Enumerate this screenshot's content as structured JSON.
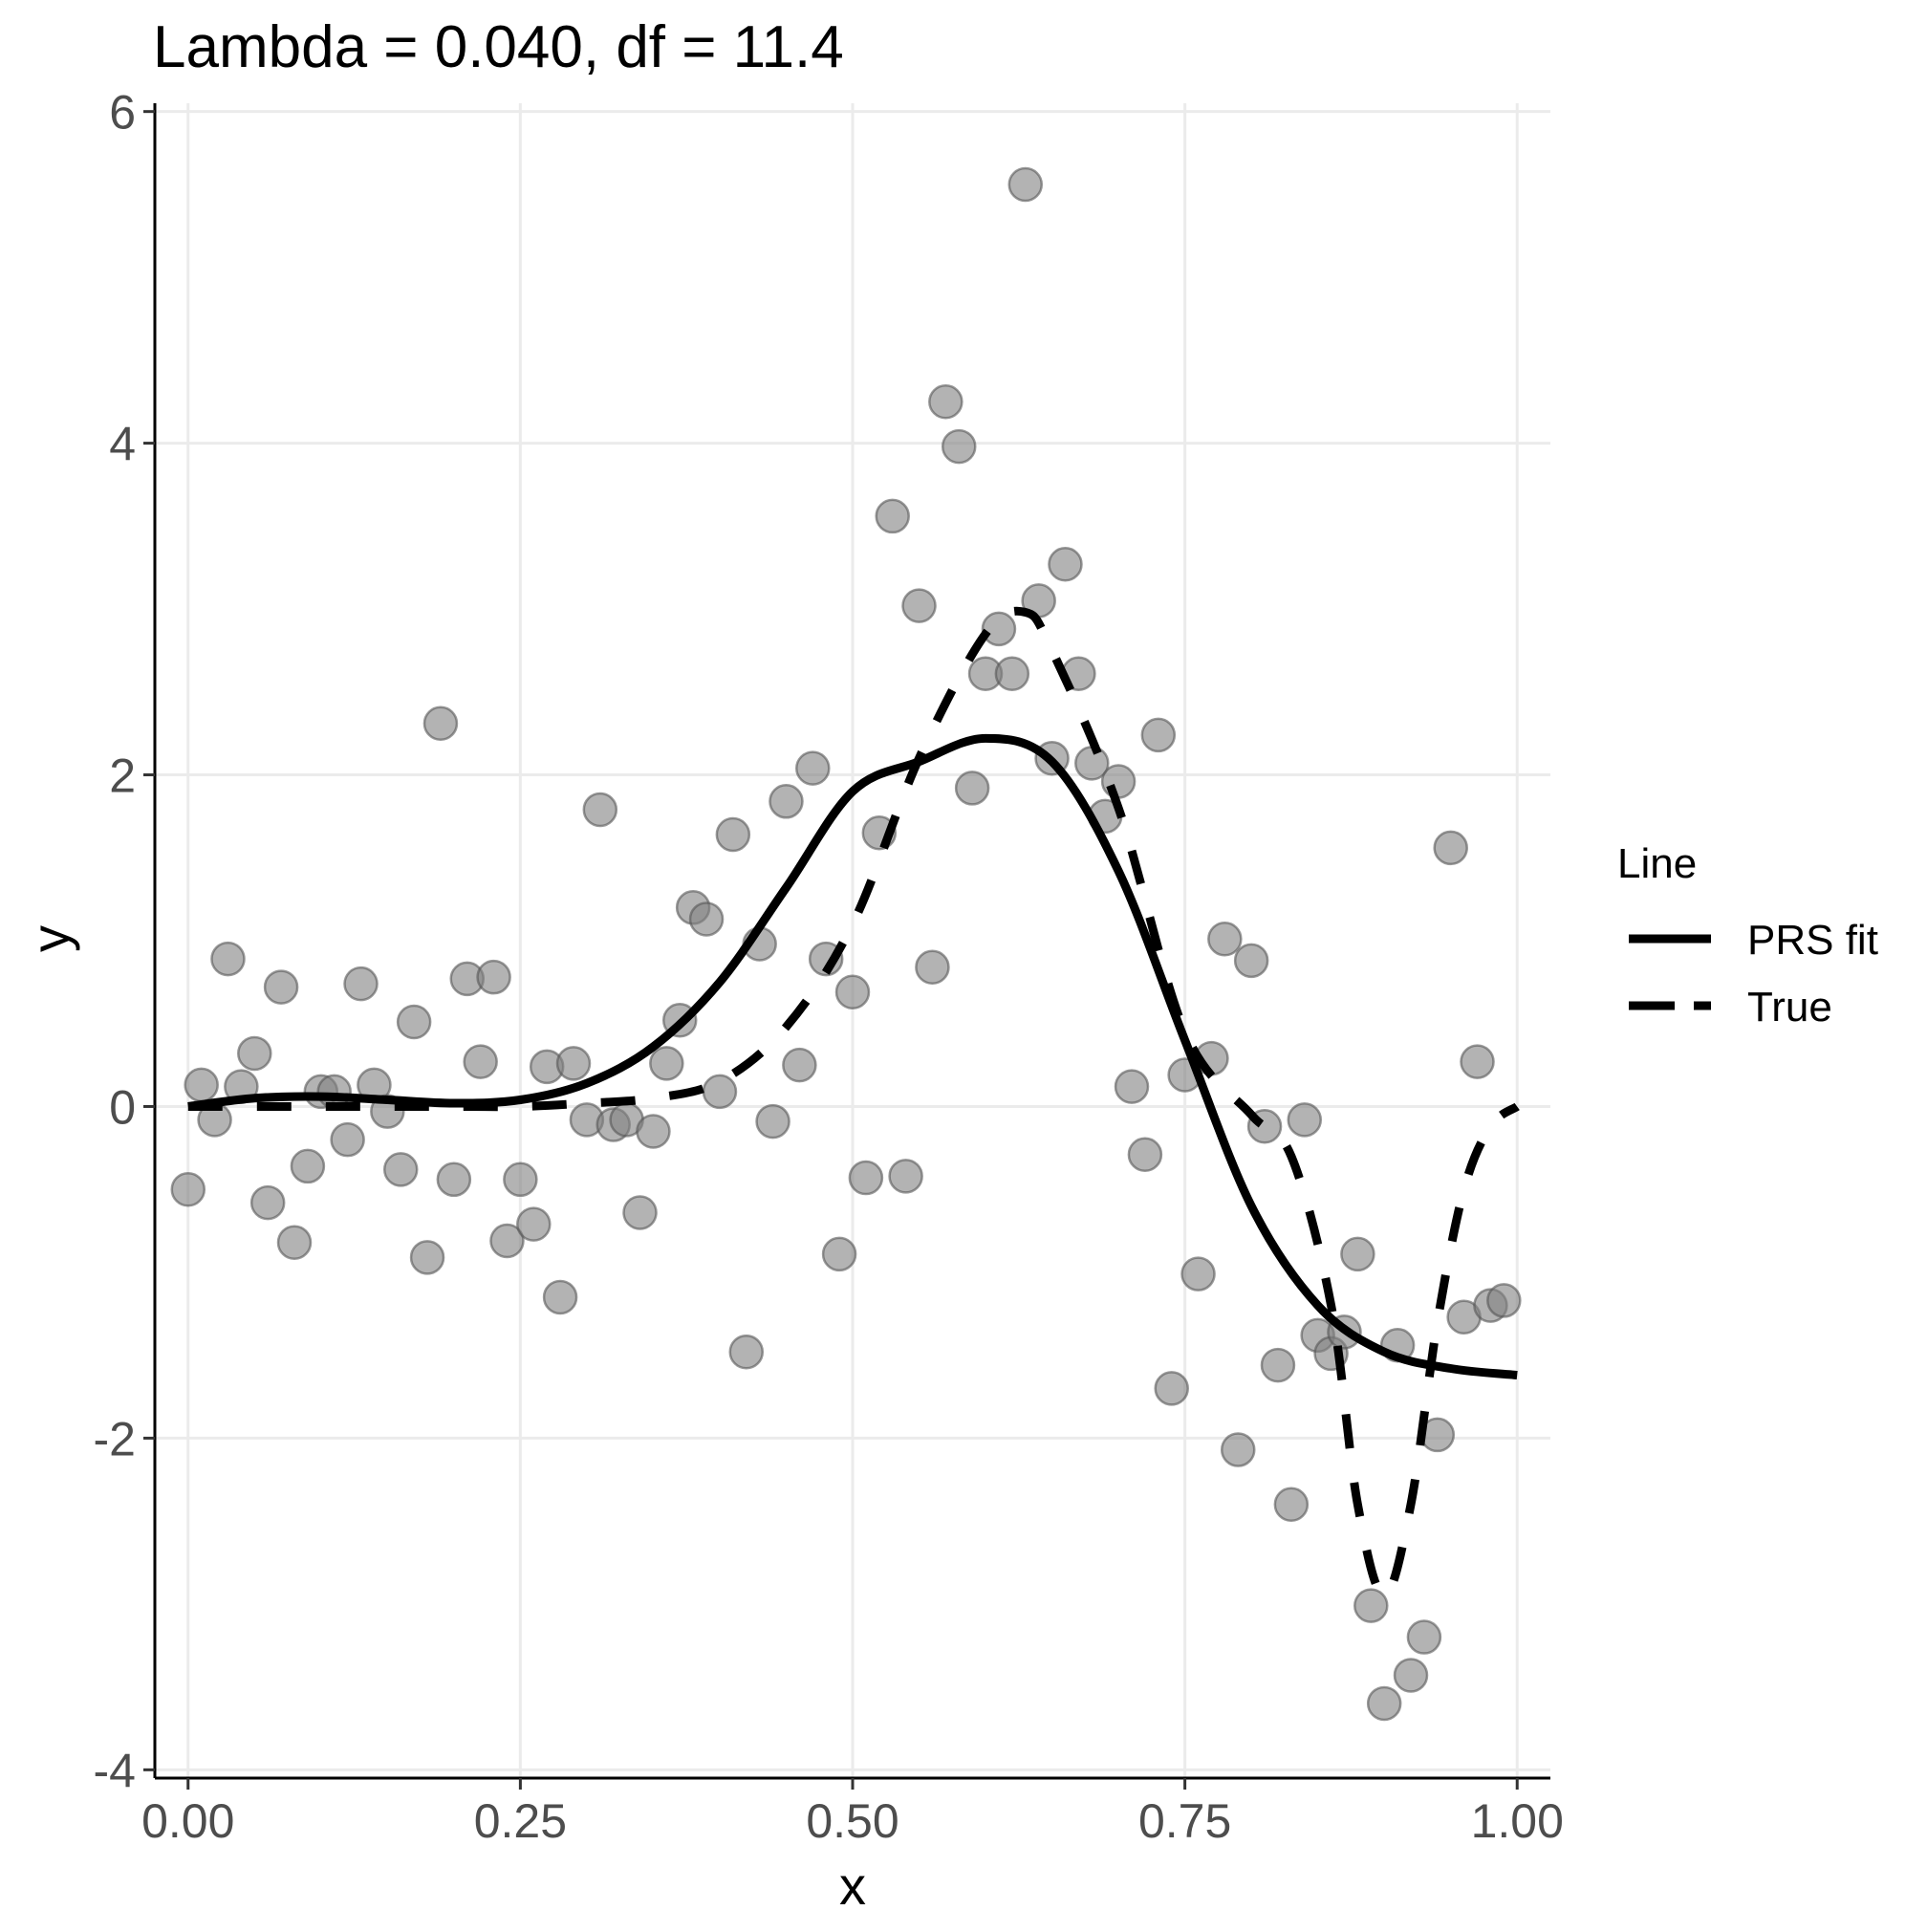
{
  "chart_data": {
    "type": "scatter",
    "title": "Lambda = 0.040, df = 11.4",
    "xlabel": "x",
    "ylabel": "y",
    "xlim": [
      -0.025,
      1.025
    ],
    "ylim": [
      -4.05,
      6.05
    ],
    "x_ticks": [
      0.0,
      0.25,
      0.5,
      0.75,
      1.0
    ],
    "x_tick_labels": [
      "0.00",
      "0.25",
      "0.50",
      "0.75",
      "1.00"
    ],
    "y_ticks": [
      -4,
      -2,
      0,
      2,
      4,
      6
    ],
    "y_tick_labels": [
      "-4",
      "-2",
      "0",
      "2",
      "4",
      "6"
    ],
    "grid": true,
    "legend": {
      "title": "Line",
      "placement": "right",
      "entries": [
        {
          "label": "PRS fit",
          "style": "solid"
        },
        {
          "label": "True",
          "style": "dashed"
        }
      ]
    },
    "colors": {
      "points": "#808080",
      "lines": "#000000",
      "grid": "#ebebeb"
    },
    "points": [
      [
        0.0,
        -0.5
      ],
      [
        0.01,
        0.13
      ],
      [
        0.02,
        -0.08
      ],
      [
        0.03,
        0.89
      ],
      [
        0.04,
        0.12
      ],
      [
        0.05,
        0.32
      ],
      [
        0.06,
        -0.58
      ],
      [
        0.07,
        0.72
      ],
      [
        0.08,
        -0.82
      ],
      [
        0.09,
        -0.36
      ],
      [
        0.1,
        0.09
      ],
      [
        0.11,
        0.09
      ],
      [
        0.12,
        -0.2
      ],
      [
        0.13,
        0.74
      ],
      [
        0.14,
        0.13
      ],
      [
        0.15,
        -0.03
      ],
      [
        0.16,
        -0.38
      ],
      [
        0.17,
        0.51
      ],
      [
        0.18,
        -0.91
      ],
      [
        0.19,
        2.31
      ],
      [
        0.2,
        -0.44
      ],
      [
        0.21,
        0.77
      ],
      [
        0.22,
        0.27
      ],
      [
        0.23,
        0.78
      ],
      [
        0.24,
        -0.81
      ],
      [
        0.25,
        -0.44
      ],
      [
        0.26,
        -0.71
      ],
      [
        0.27,
        0.24
      ],
      [
        0.28,
        -1.15
      ],
      [
        0.29,
        0.26
      ],
      [
        0.3,
        -0.08
      ],
      [
        0.31,
        1.79
      ],
      [
        0.32,
        -0.11
      ],
      [
        0.33,
        -0.08
      ],
      [
        0.34,
        -0.64
      ],
      [
        0.35,
        -0.15
      ],
      [
        0.36,
        0.26
      ],
      [
        0.37,
        0.52
      ],
      [
        0.38,
        1.2
      ],
      [
        0.39,
        1.13
      ],
      [
        0.4,
        0.09
      ],
      [
        0.41,
        1.64
      ],
      [
        0.42,
        -1.48
      ],
      [
        0.43,
        0.98
      ],
      [
        0.44,
        -0.09
      ],
      [
        0.45,
        1.84
      ],
      [
        0.46,
        0.25
      ],
      [
        0.47,
        2.04
      ],
      [
        0.48,
        0.89
      ],
      [
        0.49,
        -0.89
      ],
      [
        0.5,
        0.69
      ],
      [
        0.51,
        -0.43
      ],
      [
        0.52,
        1.65
      ],
      [
        0.53,
        3.56
      ],
      [
        0.54,
        -0.42
      ],
      [
        0.55,
        3.02
      ],
      [
        0.56,
        0.84
      ],
      [
        0.57,
        4.25
      ],
      [
        0.58,
        3.98
      ],
      [
        0.59,
        1.92
      ],
      [
        0.6,
        2.61
      ],
      [
        0.61,
        2.88
      ],
      [
        0.62,
        2.61
      ],
      [
        0.63,
        5.56
      ],
      [
        0.64,
        3.05
      ],
      [
        0.65,
        2.1
      ],
      [
        0.66,
        3.27
      ],
      [
        0.67,
        2.61
      ],
      [
        0.68,
        2.07
      ],
      [
        0.69,
        1.75
      ],
      [
        0.7,
        1.96
      ],
      [
        0.71,
        0.12
      ],
      [
        0.72,
        -0.29
      ],
      [
        0.73,
        2.24
      ],
      [
        0.74,
        -1.7
      ],
      [
        0.75,
        0.19
      ],
      [
        0.76,
        -1.01
      ],
      [
        0.77,
        0.29
      ],
      [
        0.78,
        1.01
      ],
      [
        0.79,
        -2.07
      ],
      [
        0.8,
        0.88
      ],
      [
        0.81,
        -0.12
      ],
      [
        0.82,
        -1.56
      ],
      [
        0.83,
        -2.4
      ],
      [
        0.84,
        -0.08
      ],
      [
        0.85,
        -1.38
      ],
      [
        0.86,
        -1.49
      ],
      [
        0.87,
        -1.36
      ],
      [
        0.88,
        -0.89
      ],
      [
        0.89,
        -3.01
      ],
      [
        0.9,
        -3.6
      ],
      [
        0.91,
        -1.44
      ],
      [
        0.92,
        -3.43
      ],
      [
        0.93,
        -3.2
      ],
      [
        0.94,
        -1.98
      ],
      [
        0.95,
        1.56
      ],
      [
        0.96,
        -1.27
      ],
      [
        0.97,
        0.27
      ],
      [
        0.98,
        -1.2
      ],
      [
        0.99,
        -1.17
      ]
    ],
    "series": [
      {
        "name": "PRS fit",
        "x": [
          0.0,
          0.05,
          0.1,
          0.15,
          0.2,
          0.25,
          0.3,
          0.35,
          0.4,
          0.45,
          0.5,
          0.55,
          0.6,
          0.65,
          0.7,
          0.75,
          0.8,
          0.85,
          0.9,
          0.95,
          1.0
        ],
        "y": [
          0.0,
          0.05,
          0.06,
          0.04,
          0.02,
          0.04,
          0.14,
          0.36,
          0.75,
          1.32,
          1.9,
          2.08,
          2.22,
          2.08,
          1.42,
          0.4,
          -0.6,
          -1.2,
          -1.48,
          -1.58,
          -1.62
        ]
      },
      {
        "name": "True",
        "x": [
          0.0,
          0.05,
          0.1,
          0.15,
          0.2,
          0.25,
          0.3,
          0.35,
          0.4,
          0.45,
          0.5,
          0.55,
          0.6,
          0.63,
          0.65,
          0.7,
          0.75,
          0.8,
          0.83,
          0.86,
          0.88,
          0.9,
          0.92,
          0.94,
          0.96,
          0.98,
          1.0
        ],
        "y": [
          0.0,
          0.0,
          0.0,
          0.0,
          0.0,
          0.0,
          0.02,
          0.05,
          0.15,
          0.48,
          1.1,
          2.1,
          2.85,
          2.98,
          2.75,
          1.8,
          0.45,
          -0.05,
          -0.3,
          -1.2,
          -2.4,
          -2.95,
          -2.4,
          -1.3,
          -0.5,
          -0.12,
          0.0
        ]
      }
    ]
  }
}
